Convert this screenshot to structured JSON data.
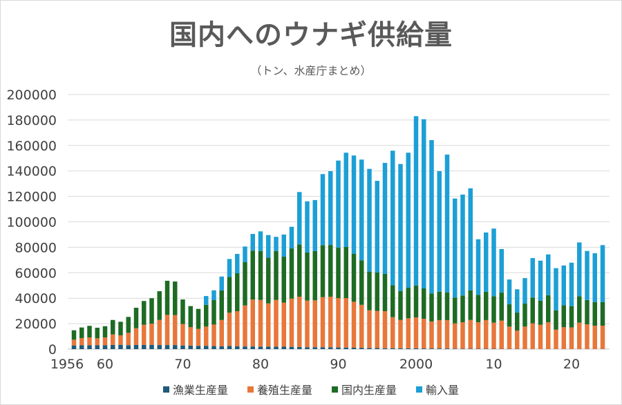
{
  "chart_data": {
    "type": "bar",
    "stacked": true,
    "title": "国内へのウナギ供給量",
    "subtitle": "（トン、水産庁まとめ）",
    "xlabel": "",
    "ylabel": "",
    "ylim": [
      0,
      200000
    ],
    "yticks": [
      "0",
      "20000",
      "40000",
      "60000",
      "80000",
      "100000",
      "120000",
      "140000",
      "160000",
      "180000",
      "200000"
    ],
    "xtick_labels": [
      {
        "year": 1956,
        "label": "1956"
      },
      {
        "year": 1960,
        "label": "60"
      },
      {
        "year": 1970,
        "label": "70"
      },
      {
        "year": 1980,
        "label": "80"
      },
      {
        "year": 1990,
        "label": "90"
      },
      {
        "year": 2000,
        "label": "2000"
      },
      {
        "year": 2010,
        "label": "10"
      },
      {
        "year": 2020,
        "label": "20"
      }
    ],
    "grid": true,
    "legend_position": "bottom",
    "categories": [
      1956,
      1957,
      1958,
      1959,
      1960,
      1961,
      1962,
      1963,
      1964,
      1965,
      1966,
      1967,
      1968,
      1969,
      1970,
      1971,
      1972,
      1973,
      1974,
      1975,
      1976,
      1977,
      1978,
      1979,
      1980,
      1981,
      1982,
      1983,
      1984,
      1985,
      1986,
      1987,
      1988,
      1989,
      1990,
      1991,
      1992,
      1993,
      1994,
      1995,
      1996,
      1997,
      1998,
      1999,
      2000,
      2001,
      2002,
      2003,
      2004,
      2005,
      2006,
      2007,
      2008,
      2009,
      2010,
      2011,
      2012,
      2013,
      2014,
      2015,
      2016,
      2017,
      2018,
      2019,
      2020,
      2021,
      2022,
      2023,
      2024
    ],
    "series": [
      {
        "name": "漁業生産量",
        "color": "#1f5a78",
        "values": [
          2900,
          3000,
          3000,
          3000,
          3100,
          3300,
          3400,
          3100,
          3300,
          3300,
          3400,
          3200,
          3200,
          3200,
          2900,
          2800,
          2600,
          2600,
          2400,
          2200,
          2500,
          2200,
          2100,
          2100,
          2000,
          2000,
          2000,
          1900,
          1800,
          1700,
          1500,
          1500,
          1500,
          1400,
          1300,
          1200,
          1100,
          1000,
          900,
          800,
          700,
          700,
          600,
          600,
          600,
          500,
          500,
          500,
          500,
          400,
          300,
          300,
          300,
          300,
          300,
          200,
          200,
          200,
          100,
          100,
          100,
          100,
          100,
          100,
          100,
          100,
          100,
          100,
          100
        ]
      },
      {
        "name": "養殖生産量",
        "color": "#e8773a",
        "values": [
          4500,
          5700,
          6200,
          5500,
          6100,
          8200,
          7400,
          9700,
          13100,
          15800,
          16600,
          19700,
          23700,
          23500,
          16800,
          14400,
          13300,
          15100,
          16900,
          20700,
          26100,
          27600,
          32200,
          36800,
          36600,
          33900,
          36600,
          34600,
          37900,
          39500,
          36600,
          36800,
          39300,
          39800,
          38800,
          38900,
          36100,
          33800,
          29600,
          29200,
          29100,
          24400,
          22300,
          23600,
          24300,
          23300,
          21200,
          22300,
          22300,
          19800,
          20800,
          22600,
          20800,
          22500,
          20500,
          22200,
          17500,
          14300,
          17600,
          20100,
          19000,
          21000,
          15200,
          17100,
          16900,
          20700,
          19400,
          18300,
          18300
        ]
      },
      {
        "name": "国内生産量",
        "color": "#1e6b24",
        "values": [
          7400,
          8300,
          9100,
          8300,
          8800,
          11400,
          10700,
          12500,
          16100,
          18700,
          20000,
          22600,
          26800,
          26400,
          19300,
          16600,
          15700,
          17100,
          19200,
          23200,
          28100,
          29800,
          34000,
          38500,
          38500,
          36000,
          38500,
          36100,
          39400,
          41000,
          37800,
          38700,
          40900,
          40600,
          39700,
          40100,
          37600,
          35000,
          30400,
          30200,
          29300,
          25100,
          22800,
          24000,
          25000,
          23900,
          22000,
          22300,
          21800,
          20300,
          21000,
          23200,
          21500,
          22300,
          20800,
          22000,
          17500,
          14200,
          18100,
          20300,
          19000,
          21300,
          15200,
          17300,
          16800,
          20800,
          19100,
          18500,
          18500
        ]
      },
      {
        "name": "輸入量",
        "color": "#1c9fd6",
        "values": [
          0,
          0,
          0,
          0,
          0,
          0,
          0,
          0,
          0,
          0,
          0,
          0,
          0,
          0,
          0,
          0,
          0,
          6900,
          7700,
          10900,
          14100,
          15200,
          12300,
          13100,
          15400,
          17700,
          11100,
          17400,
          17000,
          41200,
          40200,
          40100,
          55800,
          58000,
          68300,
          74100,
          77300,
          79100,
          80700,
          72000,
          87200,
          105700,
          99700,
          106100,
          133100,
          132900,
          120500,
          94700,
          108200,
          77800,
          79300,
          80200,
          43700,
          46500,
          53100,
          34200,
          19500,
          18300,
          20000,
          31000,
          31400,
          32000,
          33100,
          31200,
          34100,
          42200,
          38500,
          38400,
          44800
        ]
      }
    ]
  }
}
